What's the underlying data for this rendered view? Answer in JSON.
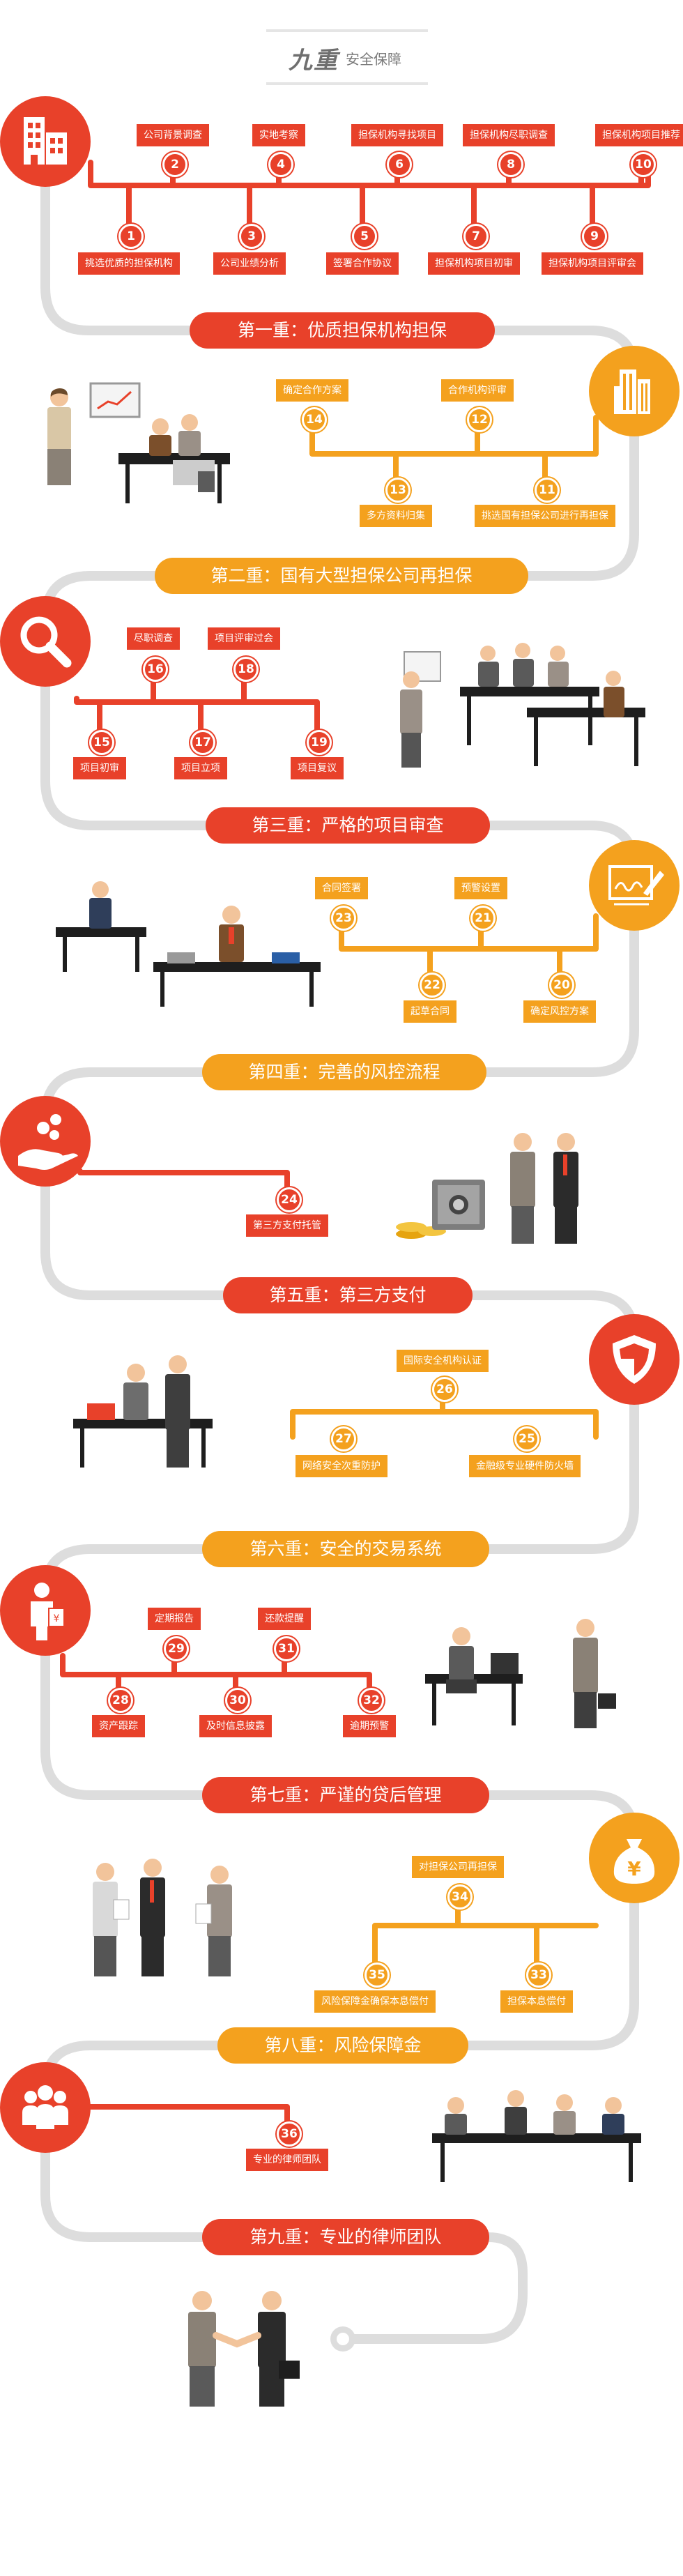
{
  "header": {
    "logo": "九重",
    "subtitle": "安全保障"
  },
  "colors": {
    "red": "#e8412a",
    "orange": "#f4a11e",
    "track": "#dddddd"
  },
  "sections": [
    {
      "title": "第一重：优质担保机构担保",
      "icon": "building-icon",
      "nodes": [
        {
          "num": "1",
          "label": "挑选优质的担保机构"
        },
        {
          "num": "2",
          "label": "公司背景调查"
        },
        {
          "num": "3",
          "label": "公司业绩分析"
        },
        {
          "num": "4",
          "label": "实地考察"
        },
        {
          "num": "5",
          "label": "签署合作协议"
        },
        {
          "num": "6",
          "label": "担保机构寻找项目"
        },
        {
          "num": "7",
          "label": "担保机构项目初审"
        },
        {
          "num": "8",
          "label": "担保机构尽职调查"
        },
        {
          "num": "9",
          "label": "担保机构项目评审会"
        },
        {
          "num": "10",
          "label": "担保机构项目推荐"
        }
      ]
    },
    {
      "title": "第二重：国有大型担保公司再担保",
      "icon": "skyscraper-icon",
      "nodes": [
        {
          "num": "11",
          "label": "挑选国有担保公司进行再担保"
        },
        {
          "num": "12",
          "label": "合作机构评审"
        },
        {
          "num": "13",
          "label": "多方资料归集"
        },
        {
          "num": "14",
          "label": "确定合作方案"
        }
      ]
    },
    {
      "title": "第三重：严格的项目审查",
      "icon": "magnifier-icon",
      "nodes": [
        {
          "num": "15",
          "label": "项目初审"
        },
        {
          "num": "16",
          "label": "尽职调查"
        },
        {
          "num": "17",
          "label": "项目立项"
        },
        {
          "num": "18",
          "label": "项目评审过会"
        },
        {
          "num": "19",
          "label": "项目复议"
        }
      ]
    },
    {
      "title": "第四重：完善的风控流程",
      "icon": "signature-icon",
      "nodes": [
        {
          "num": "20",
          "label": "确定风控方案"
        },
        {
          "num": "21",
          "label": "预警设置"
        },
        {
          "num": "22",
          "label": "起草合同"
        },
        {
          "num": "23",
          "label": "合同签署"
        }
      ]
    },
    {
      "title": "第五重：第三方支付",
      "icon": "coin-hand-icon",
      "nodes": [
        {
          "num": "24",
          "label": "第三方支付托管"
        }
      ]
    },
    {
      "title": "第六重：安全的交易系统",
      "icon": "shield-icon",
      "nodes": [
        {
          "num": "25",
          "label": "金融级专业硬件防火墙"
        },
        {
          "num": "26",
          "label": "国际安全机构认证"
        },
        {
          "num": "27",
          "label": "网络安全次重防护"
        }
      ]
    },
    {
      "title": "第七重：严谨的贷后管理",
      "icon": "person-money-icon",
      "nodes": [
        {
          "num": "28",
          "label": "资产跟踪"
        },
        {
          "num": "29",
          "label": "定期报告"
        },
        {
          "num": "30",
          "label": "及时信息披露"
        },
        {
          "num": "31",
          "label": "还款提醒"
        },
        {
          "num": "32",
          "label": "逾期预警"
        }
      ]
    },
    {
      "title": "第八重：风险保障金",
      "icon": "money-bag-icon",
      "nodes": [
        {
          "num": "33",
          "label": "担保本息偿付"
        },
        {
          "num": "34",
          "label": "对担保公司再担保"
        },
        {
          "num": "35",
          "label": "风险保障金确保本息偿付"
        }
      ]
    },
    {
      "title": "第九重：专业的律师团队",
      "icon": "team-icon",
      "nodes": [
        {
          "num": "36",
          "label": "专业的律师团队"
        }
      ]
    }
  ]
}
